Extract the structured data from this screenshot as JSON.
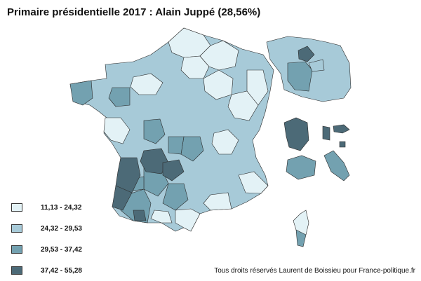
{
  "title": "Primaire présidentielle 2017 : Alain Juppé (28,56%)",
  "legend": [
    {
      "label": "11,13 - 24,32",
      "color": "#e3f2f6"
    },
    {
      "label": "24,32 - 29,53",
      "color": "#a7cad8"
    },
    {
      "label": "29,53 - 37,42",
      "color": "#73a1b0"
    },
    {
      "label": "37,42 - 55,28",
      "color": "#4c6a77"
    }
  ],
  "credit": "Tous droits réservés Laurent de Boissieu pour France-politique.fr"
}
